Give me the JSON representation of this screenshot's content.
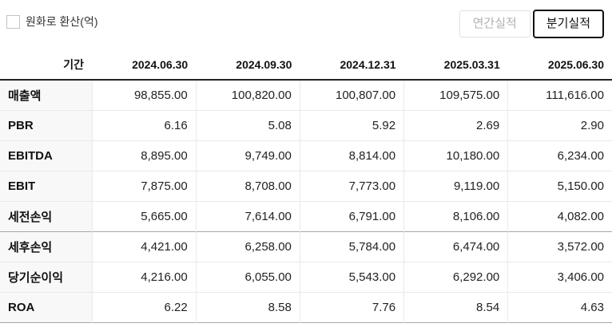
{
  "controls": {
    "checkbox": {
      "label": "원화로 환산(억)",
      "checked": false
    },
    "buttons": [
      {
        "id": "annual",
        "label": "연간실적",
        "active": false
      },
      {
        "id": "quarterly",
        "label": "분기실적",
        "active": true
      }
    ]
  },
  "colors": {
    "header_rule": "#222222",
    "row_divider": "#e9e9e9",
    "group_divider": "#a6a6a6",
    "label_cell_bg": "#f8f8f8",
    "active_button_border": "#111111",
    "inactive_button_text": "#b0b0b0"
  },
  "chart_data": {
    "type": "table",
    "title": "분기실적",
    "header": [
      "기간",
      "2024.06.30",
      "2024.09.30",
      "2024.12.31",
      "2025.03.31",
      "2025.06.30"
    ],
    "rows": [
      {
        "label": "매출액",
        "values": [
          "98,855.00",
          "100,820.00",
          "100,807.00",
          "109,575.00",
          "111,616.00"
        ],
        "group_end": false
      },
      {
        "label": "PBR",
        "values": [
          "6.16",
          "5.08",
          "5.92",
          "2.69",
          "2.90"
        ],
        "group_end": false
      },
      {
        "label": "EBITDA",
        "values": [
          "8,895.00",
          "9,749.00",
          "8,814.00",
          "10,180.00",
          "6,234.00"
        ],
        "group_end": false
      },
      {
        "label": "EBIT",
        "values": [
          "7,875.00",
          "8,708.00",
          "7,773.00",
          "9,119.00",
          "5,150.00"
        ],
        "group_end": false
      },
      {
        "label": "세전손익",
        "values": [
          "5,665.00",
          "7,614.00",
          "6,791.00",
          "8,106.00",
          "4,082.00"
        ],
        "group_end": true
      },
      {
        "label": "세후손익",
        "values": [
          "4,421.00",
          "6,258.00",
          "5,784.00",
          "6,474.00",
          "3,572.00"
        ],
        "group_end": false
      },
      {
        "label": "당기순이익",
        "values": [
          "4,216.00",
          "6,055.00",
          "5,543.00",
          "6,292.00",
          "3,406.00"
        ],
        "group_end": false
      },
      {
        "label": "ROA",
        "values": [
          "6.22",
          "8.58",
          "7.76",
          "8.54",
          "4.63"
        ],
        "group_end": true
      }
    ]
  }
}
